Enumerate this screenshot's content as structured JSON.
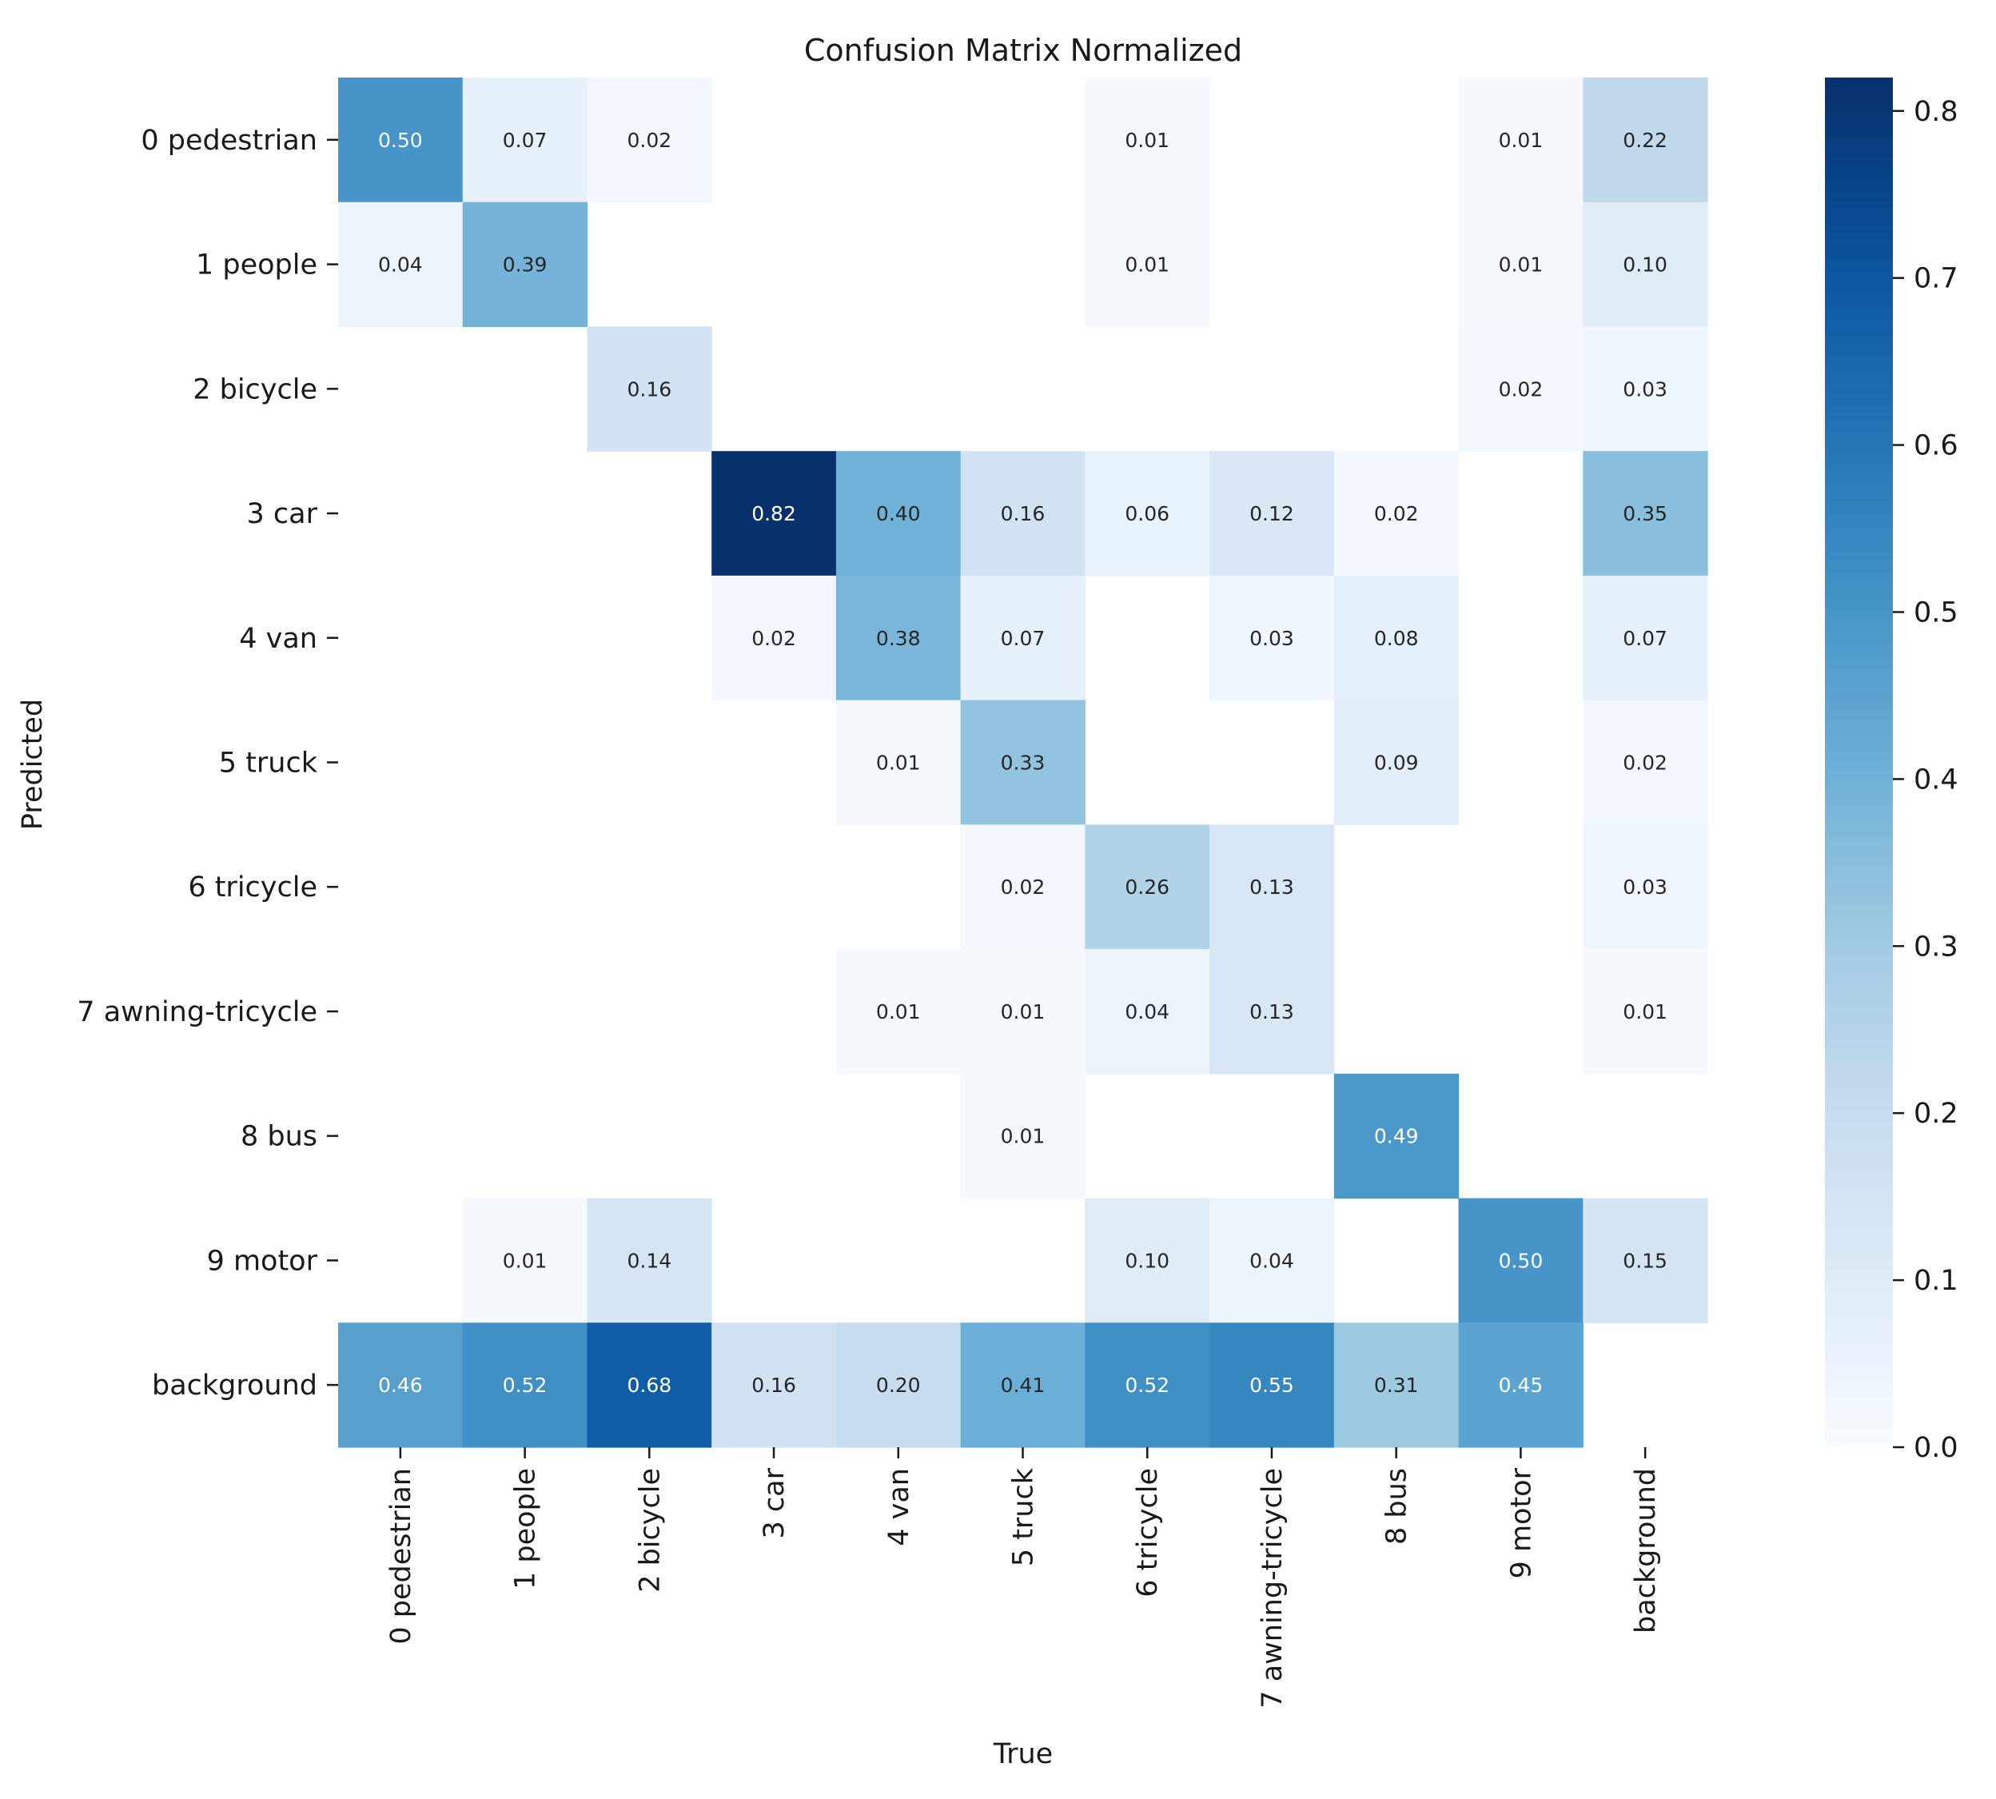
{
  "chart_data": {
    "type": "heatmap",
    "title": "Confusion Matrix Normalized",
    "xlabel": "True",
    "ylabel": "Predicted",
    "x_categories": [
      "0 pedestrian",
      "1 people",
      "2 bicycle",
      "3 car",
      "4 van",
      "5 truck",
      "6 tricycle",
      "7 awning-tricycle",
      "8 bus",
      "9 motor",
      "background"
    ],
    "y_categories": [
      "0 pedestrian",
      "1 people",
      "2 bicycle",
      "3 car",
      "4 van",
      "5 truck",
      "6 tricycle",
      "7 awning-tricycle",
      "8 bus",
      "9 motor",
      "background"
    ],
    "values": [
      [
        0.5,
        0.07,
        0.02,
        null,
        null,
        null,
        0.01,
        null,
        null,
        0.01,
        0.22
      ],
      [
        0.04,
        0.39,
        null,
        null,
        null,
        null,
        0.01,
        null,
        null,
        0.01,
        0.1
      ],
      [
        null,
        null,
        0.16,
        null,
        null,
        null,
        null,
        null,
        null,
        0.02,
        0.03
      ],
      [
        null,
        null,
        null,
        0.82,
        0.4,
        0.16,
        0.06,
        0.12,
        0.02,
        null,
        0.35
      ],
      [
        null,
        null,
        null,
        0.02,
        0.38,
        0.07,
        null,
        0.03,
        0.08,
        null,
        0.07
      ],
      [
        null,
        null,
        null,
        null,
        0.01,
        0.33,
        null,
        null,
        0.09,
        null,
        0.02
      ],
      [
        null,
        null,
        null,
        null,
        null,
        0.02,
        0.26,
        0.13,
        null,
        null,
        0.03
      ],
      [
        null,
        null,
        null,
        null,
        0.01,
        0.01,
        0.04,
        0.13,
        null,
        null,
        0.01
      ],
      [
        null,
        null,
        null,
        null,
        null,
        0.01,
        null,
        null,
        0.49,
        null,
        null
      ],
      [
        null,
        0.01,
        0.14,
        null,
        null,
        null,
        0.1,
        0.04,
        null,
        0.5,
        0.15
      ],
      [
        0.46,
        0.52,
        0.68,
        0.16,
        0.2,
        0.41,
        0.52,
        0.55,
        0.31,
        0.45,
        null
      ]
    ],
    "value_format": "0.00",
    "colormap": "Blues",
    "colorbar": {
      "range": [
        0.0,
        0.82
      ],
      "ticks": [
        "0.0",
        "0.1",
        "0.2",
        "0.3",
        "0.4",
        "0.5",
        "0.6",
        "0.7",
        "0.8"
      ],
      "position": "right"
    },
    "grid": false
  }
}
